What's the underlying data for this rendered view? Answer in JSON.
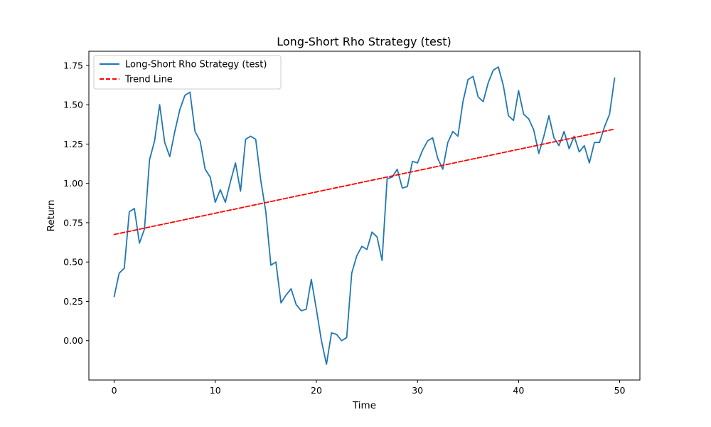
{
  "chart_data": {
    "type": "line",
    "title": "Long-Short Rho Strategy (test)",
    "xlabel": "Time",
    "ylabel": "Return",
    "xlim": [
      -2.5,
      52
    ],
    "ylim": [
      -0.25,
      1.84
    ],
    "xticks": [
      0,
      10,
      20,
      30,
      40,
      50
    ],
    "xtick_labels": [
      "0",
      "10",
      "20",
      "30",
      "40",
      "50"
    ],
    "yticks": [
      0.0,
      0.25,
      0.5,
      0.75,
      1.0,
      1.25,
      1.5,
      1.75
    ],
    "ytick_labels": [
      "0.00",
      "0.25",
      "0.50",
      "0.75",
      "1.00",
      "1.25",
      "1.50",
      "1.75"
    ],
    "grid": false,
    "legend_position": "top-left",
    "series": [
      {
        "name": "Long-Short Rho Strategy (test)",
        "color": "#1f77b4",
        "style": "solid",
        "x": [
          0,
          0.5,
          1,
          1.5,
          2,
          2.5,
          3,
          3.5,
          4,
          4.5,
          5,
          5.5,
          6,
          6.5,
          7,
          7.5,
          8,
          8.5,
          9,
          9.5,
          10,
          10.5,
          11,
          11.5,
          12,
          12.5,
          13,
          13.5,
          14,
          14.5,
          15,
          15.5,
          16,
          16.5,
          17,
          17.5,
          18,
          18.5,
          19,
          19.5,
          20,
          20.5,
          21,
          21.5,
          22,
          22.5,
          23,
          23.5,
          24,
          24.5,
          25,
          25.5,
          26,
          26.5,
          27,
          27.5,
          28,
          28.5,
          29,
          29.5,
          30,
          30.5,
          31,
          31.5,
          32,
          32.5,
          33,
          33.5,
          34,
          34.5,
          35,
          35.5,
          36,
          36.5,
          37,
          37.5,
          38,
          38.5,
          39,
          39.5,
          40,
          40.5,
          41,
          41.5,
          42,
          42.5,
          43,
          43.5,
          44,
          44.5,
          45,
          45.5,
          46,
          46.5,
          47,
          47.5,
          48,
          48.5,
          49,
          49.5
        ],
        "values": [
          0.28,
          0.43,
          0.46,
          0.82,
          0.84,
          0.62,
          0.71,
          1.15,
          1.27,
          1.5,
          1.26,
          1.17,
          1.33,
          1.47,
          1.56,
          1.58,
          1.33,
          1.27,
          1.09,
          1.04,
          0.88,
          0.96,
          0.88,
          1.01,
          1.13,
          0.95,
          1.28,
          1.3,
          1.28,
          1.02,
          0.82,
          0.48,
          0.5,
          0.24,
          0.29,
          0.33,
          0.23,
          0.19,
          0.2,
          0.39,
          0.2,
          0.0,
          -0.15,
          0.05,
          0.04,
          0.0,
          0.02,
          0.43,
          0.54,
          0.6,
          0.58,
          0.69,
          0.66,
          0.51,
          1.03,
          1.04,
          1.09,
          0.97,
          0.98,
          1.14,
          1.13,
          1.21,
          1.27,
          1.29,
          1.16,
          1.09,
          1.26,
          1.33,
          1.3,
          1.52,
          1.66,
          1.68,
          1.55,
          1.52,
          1.64,
          1.72,
          1.74,
          1.62,
          1.43,
          1.4,
          1.59,
          1.44,
          1.41,
          1.34,
          1.19,
          1.3,
          1.43,
          1.29,
          1.24,
          1.33,
          1.22,
          1.3,
          1.2,
          1.24,
          1.13,
          1.26,
          1.26,
          1.36,
          1.44,
          1.67
        ]
      },
      {
        "name": "Trend Line",
        "color": "#ff0000",
        "style": "dashed",
        "x": [
          0,
          49.5
        ],
        "values": [
          0.675,
          1.345
        ]
      }
    ]
  }
}
